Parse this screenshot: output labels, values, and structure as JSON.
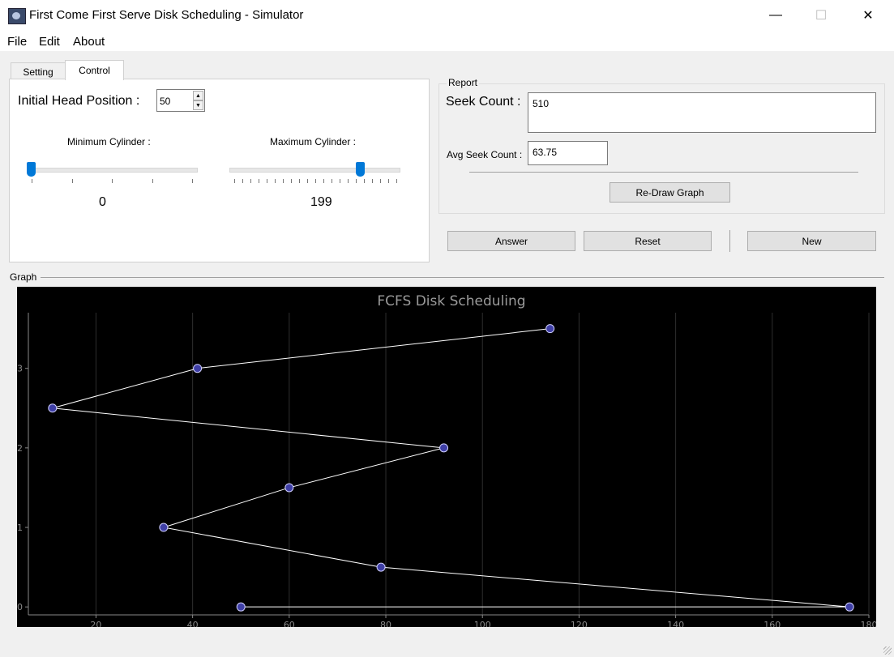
{
  "window": {
    "title": "First Come First Serve Disk Scheduling - Simulator",
    "minimize_glyph": "—",
    "maximize_glyph": "☐",
    "close_glyph": "✕"
  },
  "menu": {
    "items": [
      {
        "label": "File"
      },
      {
        "label": "Edit"
      },
      {
        "label": "About"
      }
    ]
  },
  "tabs": [
    {
      "label": "Setting"
    },
    {
      "label": "Control"
    }
  ],
  "control": {
    "head_label": "Initial Head Position :",
    "head_value": "50",
    "min_label": "Minimum Cylinder :",
    "min_value": "0",
    "min_slider_fraction": 0.0,
    "max_label": "Maximum Cylinder :",
    "max_value": "199",
    "max_slider_fraction": 0.79
  },
  "report": {
    "group_label": "Report",
    "seek_label": "Seek Count :",
    "seek_value": "510",
    "avg_label": "Avg Seek Count :",
    "avg_value": "63.75",
    "redraw_label": "Re-Draw Graph"
  },
  "actions": {
    "answer_label": "Answer",
    "reset_label": "Reset",
    "new_label": "New"
  },
  "graph": {
    "group_label": "Graph"
  },
  "colors": {
    "accent": "#0078d7",
    "chart_background": "#000000",
    "point_fill": "#3f3fa6",
    "line": "#ffffff"
  },
  "chart_data": {
    "type": "line",
    "title": "FCFS Disk Scheduling",
    "xlabel": "",
    "ylabel": "",
    "x": [
      50,
      176,
      79,
      34,
      60,
      92,
      11,
      41,
      114
    ],
    "y": [
      0,
      0,
      0.5,
      1,
      1.5,
      2,
      2.5,
      3,
      3.5
    ],
    "xlim": [
      6,
      180
    ],
    "ylim": [
      -0.1,
      3.7
    ],
    "xticks": [
      20,
      40,
      60,
      80,
      100,
      120,
      140,
      160,
      180
    ],
    "yticks": [
      0,
      1,
      2,
      3
    ],
    "grid": "vertical"
  }
}
